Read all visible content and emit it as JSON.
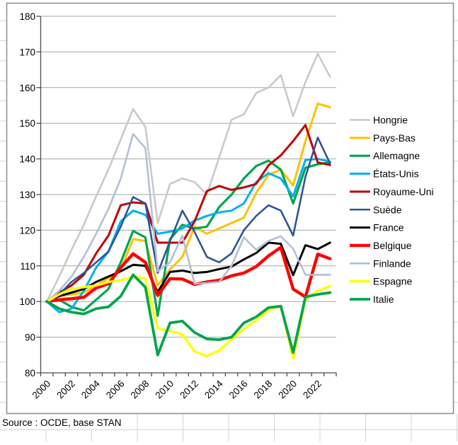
{
  "sheet": {
    "source": "Source : OCDE, base STAN"
  },
  "ui": {
    "colors": {
      "gridline": "#a6a6a6",
      "axis": "#4d4d4d",
      "sheet_gridline": "#d4d4d4",
      "chart_border": "#919191",
      "text": "#000000",
      "background": "#ffffff"
    }
  },
  "chart_data": {
    "type": "line",
    "title": "",
    "xlabel": "",
    "ylabel": "",
    "ylim": [
      80,
      180
    ],
    "ytick_step": 10,
    "grid": true,
    "legend_position": "right",
    "x": [
      2000,
      2001,
      2002,
      2003,
      2004,
      2005,
      2006,
      2007,
      2008,
      2009,
      2010,
      2011,
      2012,
      2013,
      2014,
      2015,
      2016,
      2017,
      2018,
      2019,
      2020,
      2021,
      2022,
      2023
    ],
    "xtick_labels": [
      "2000",
      "2002",
      "2004",
      "2006",
      "2008",
      "2010",
      "2012",
      "2014",
      "2016",
      "2018",
      "2020",
      "2022"
    ],
    "ytick_labels": [
      "80",
      "90",
      "100",
      "110",
      "120",
      "130",
      "140",
      "150",
      "160",
      "170",
      "180"
    ],
    "series": [
      {
        "name": "Hongrie",
        "color": "#c9c9c9",
        "width": 2.6,
        "values": [
          100,
          107,
          114.5,
          121.5,
          129.5,
          137,
          145.5,
          154,
          149,
          122,
          133,
          134.5,
          133.5,
          130,
          140.5,
          151,
          152.5,
          158.5,
          160,
          163.5,
          152,
          161.5,
          169.5,
          163
        ]
      },
      {
        "name": "Pays-Bas",
        "color": "#ffc000",
        "width": 3,
        "values": [
          100,
          101.5,
          102,
          102.5,
          104.5,
          106.5,
          109,
          117.5,
          117,
          104.5,
          109,
          112.5,
          121,
          119,
          120.5,
          122,
          123.5,
          130.5,
          135.5,
          137,
          132.5,
          145,
          155.5,
          154.5
        ]
      },
      {
        "name": "Allemagne",
        "color": "#00a44f",
        "width": 3.2,
        "values": [
          100,
          100.5,
          98.5,
          97.5,
          100.5,
          103.5,
          111,
          119.8,
          118,
          96,
          117.5,
          121.5,
          120.5,
          121,
          126.5,
          130,
          134.5,
          138,
          139.5,
          137,
          127.5,
          137.5,
          138.5,
          139
        ]
      },
      {
        "name": "États-Unis",
        "color": "#00b0f0",
        "width": 3,
        "values": [
          100,
          97,
          98,
          103,
          109.5,
          114,
          122.5,
          125.5,
          124.3,
          119,
          119.6,
          120.5,
          122.7,
          124,
          125,
          125.5,
          127.5,
          133.5,
          136,
          134.5,
          129.5,
          139.7,
          140,
          139.2
        ]
      },
      {
        "name": "Royaume-Uni",
        "color": "#c00000",
        "width": 3,
        "values": [
          100,
          102.5,
          104.5,
          107.5,
          113.5,
          118.5,
          127,
          127.8,
          127.5,
          116.5,
          116.5,
          116.5,
          122.5,
          131,
          132.4,
          131.3,
          132,
          133,
          138.2,
          141,
          145,
          149.5,
          139,
          138.3
        ]
      },
      {
        "name": "Suède",
        "color": "#2f5597",
        "width": 2.6,
        "values": [
          100,
          102,
          105.5,
          108,
          111,
          114,
          121,
          129.3,
          127.5,
          108,
          117,
          125.5,
          119.5,
          112.5,
          111,
          113.5,
          120,
          124,
          127,
          125.5,
          118.5,
          135,
          146,
          138.7
        ]
      },
      {
        "name": "France",
        "color": "#000000",
        "width": 3,
        "values": [
          100,
          101.5,
          102.5,
          103.5,
          105.5,
          107,
          108.5,
          110.3,
          110,
          102.7,
          108.3,
          108.7,
          108,
          108.3,
          109.1,
          109.8,
          111.8,
          113.6,
          116.5,
          116.2,
          107.4,
          115.8,
          114.7,
          116.5
        ]
      },
      {
        "name": "Belgique",
        "color": "#ff0000",
        "width": 4.4,
        "values": [
          100,
          100.5,
          100.8,
          101.2,
          103.8,
          105,
          109.5,
          113.4,
          111,
          101.7,
          106.4,
          106.3,
          104.8,
          105.5,
          106,
          107.2,
          108,
          109.8,
          112.8,
          115.2,
          103.5,
          101.3,
          113.3,
          112
        ]
      },
      {
        "name": "Finlande",
        "color": "#b4bfd3",
        "width": 2.6,
        "values": [
          100,
          103,
          107,
          112.5,
          119,
          126,
          134.5,
          147,
          143,
          108.5,
          111,
          118.5,
          105,
          105.2,
          105.5,
          110,
          118,
          114.5,
          117,
          118.3,
          114.8,
          107.5,
          107.5,
          107.5
        ]
      },
      {
        "name": "Espagne",
        "color": "#ffff00",
        "width": 3.4,
        "values": [
          100,
          102,
          103.5,
          104,
          104.5,
          105.5,
          106,
          107,
          106.5,
          92.5,
          91.7,
          90.8,
          86,
          84.7,
          86.3,
          89.3,
          92.3,
          94.7,
          97.5,
          98.8,
          84,
          100.7,
          103,
          104.3
        ]
      },
      {
        "name": "Italie",
        "color": "#00a44f",
        "width": 3.8,
        "values": [
          100,
          98,
          97,
          96.5,
          98,
          98.5,
          101.5,
          107.5,
          104,
          85,
          94,
          94.5,
          91.3,
          89.5,
          89.3,
          90,
          94,
          95.7,
          98.3,
          98.7,
          85.7,
          101.3,
          102,
          102.5
        ]
      }
    ]
  }
}
